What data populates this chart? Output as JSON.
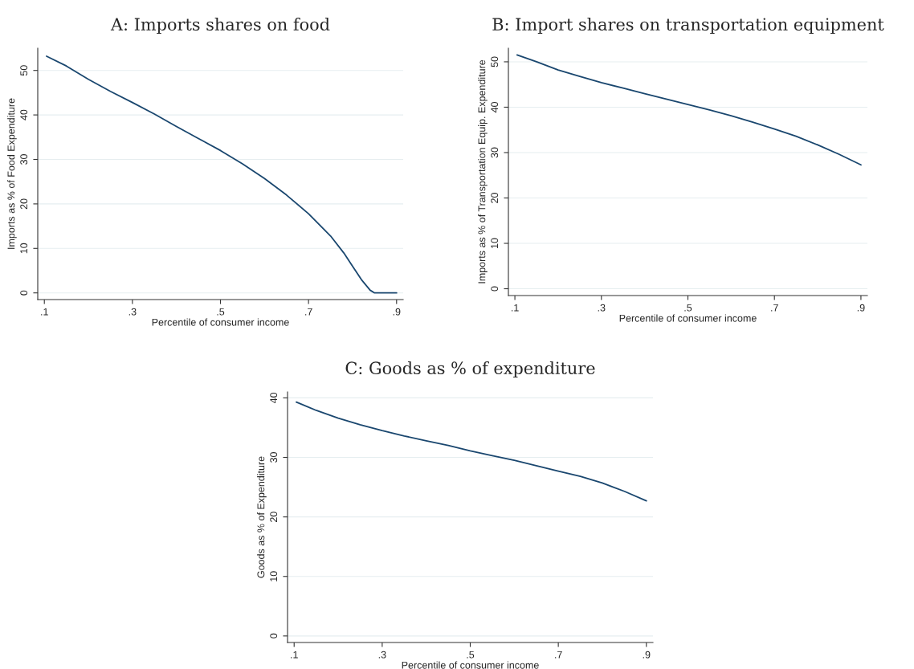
{
  "chart_data": [
    {
      "type": "line",
      "title": "A: Imports shares on food",
      "xlabel": "Percentile of consumer income",
      "ylabel": "Imports as % of Food Expenditure",
      "series": [
        {
          "color": "#1a476f",
          "x": [
            0.105,
            0.15,
            0.2,
            0.25,
            0.3,
            0.35,
            0.4,
            0.45,
            0.5,
            0.55,
            0.6,
            0.65,
            0.7,
            0.75,
            0.78,
            0.8,
            0.82,
            0.84,
            0.85,
            0.9
          ],
          "values": [
            53.2,
            51,
            48,
            45.3,
            42.8,
            40.2,
            37.4,
            34.7,
            32,
            29,
            25.7,
            22,
            17.8,
            12.8,
            9,
            6,
            3,
            0.6,
            0,
            0
          ]
        }
      ],
      "xlim": [
        0.085,
        0.915
      ],
      "ylim": [
        -1.5,
        55
      ],
      "xticks": [
        {
          "value": 0.1,
          "label": ".1"
        },
        {
          "value": 0.3,
          "label": ".3"
        },
        {
          "value": 0.5,
          "label": ".5"
        },
        {
          "value": 0.7,
          "label": ".7"
        },
        {
          "value": 0.9,
          "label": ".9"
        }
      ],
      "yticks": [
        0,
        10,
        20,
        30,
        40,
        50
      ],
      "grid": "y"
    },
    {
      "type": "line",
      "title": "B: Import shares on transportation equipment",
      "xlabel": "Percentile of consumer income",
      "ylabel": "Imports as % of Transportation Equip. Expenditure",
      "series": [
        {
          "color": "#1a476f",
          "x": [
            0.105,
            0.15,
            0.2,
            0.25,
            0.3,
            0.35,
            0.4,
            0.45,
            0.5,
            0.55,
            0.6,
            0.65,
            0.7,
            0.75,
            0.8,
            0.85,
            0.9
          ],
          "values": [
            51.5,
            50,
            48.2,
            46.8,
            45.4,
            44.2,
            43,
            41.8,
            40.6,
            39.4,
            38.1,
            36.7,
            35.2,
            33.6,
            31.7,
            29.6,
            27.3
          ]
        }
      ],
      "xlim": [
        0.085,
        0.915
      ],
      "ylim": [
        -1.5,
        53
      ],
      "xticks": [
        {
          "value": 0.1,
          "label": ".1"
        },
        {
          "value": 0.3,
          "label": ".3"
        },
        {
          "value": 0.5,
          "label": ".5"
        },
        {
          "value": 0.7,
          "label": ".7"
        },
        {
          "value": 0.9,
          "label": ".9"
        }
      ],
      "yticks": [
        0,
        10,
        20,
        30,
        40,
        50
      ],
      "grid": "y"
    },
    {
      "type": "line",
      "title": "C: Goods as % of expenditure",
      "xlabel": "Percentile of consumer income",
      "ylabel": "Goods as % of Expenditure",
      "series": [
        {
          "color": "#1a476f",
          "x": [
            0.105,
            0.15,
            0.2,
            0.25,
            0.3,
            0.35,
            0.4,
            0.45,
            0.5,
            0.55,
            0.6,
            0.65,
            0.7,
            0.75,
            0.8,
            0.85,
            0.9
          ],
          "values": [
            39.3,
            37.9,
            36.6,
            35.5,
            34.5,
            33.6,
            32.8,
            32,
            31.1,
            30.3,
            29.5,
            28.6,
            27.7,
            26.8,
            25.7,
            24.3,
            22.7
          ]
        }
      ],
      "xlim": [
        0.085,
        0.915
      ],
      "ylim": [
        -1.1,
        41
      ],
      "xticks": [
        {
          "value": 0.1,
          "label": ".1"
        },
        {
          "value": 0.3,
          "label": ".3"
        },
        {
          "value": 0.5,
          "label": ".5"
        },
        {
          "value": 0.7,
          "label": ".7"
        },
        {
          "value": 0.9,
          "label": ".9"
        }
      ],
      "yticks": [
        0,
        10,
        20,
        30,
        40
      ],
      "grid": "y"
    }
  ]
}
